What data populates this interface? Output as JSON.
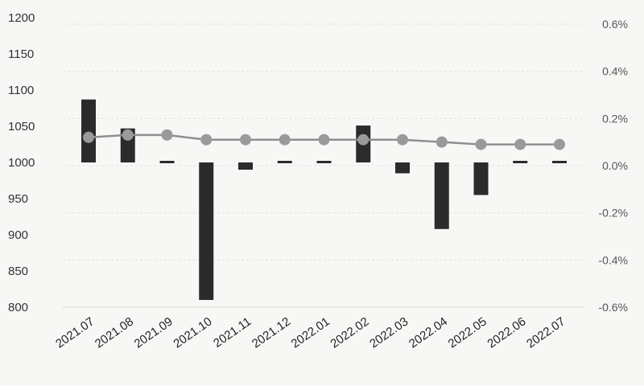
{
  "chart_data": {
    "type": "bar+line",
    "categories": [
      "2021.07",
      "2021.08",
      "2021.09",
      "2021.10",
      "2021.11",
      "2021.12",
      "2022.01",
      "2022.02",
      "2022.03",
      "2022.04",
      "2022.05",
      "2022.06",
      "2022.07"
    ],
    "bar_series": {
      "axis": "left",
      "values": [
        1087,
        1047,
        997,
        810,
        990,
        1002,
        1000,
        1051,
        985,
        908,
        955,
        1003,
        998
      ],
      "color": "#2b2b2b"
    },
    "line_series": {
      "axis": "right",
      "values": [
        0.12,
        0.13,
        0.13,
        0.11,
        0.11,
        0.11,
        0.11,
        0.11,
        0.11,
        0.1,
        0.09,
        0.09,
        0.09
      ],
      "color": "#8f8f8f",
      "marker_color": "#9a9a9a"
    },
    "y_left": {
      "min": 800,
      "max": 1200,
      "ticks": [
        "1200",
        "1150",
        "1100",
        "1050",
        "1000",
        "950",
        "900",
        "850",
        "800"
      ]
    },
    "y_right": {
      "min": -0.6,
      "max": 0.6,
      "ticks": [
        "0.6%",
        "0.4%",
        "0.2%",
        "0.0%",
        "-0.2%",
        "-0.4%",
        "-0.6%"
      ]
    },
    "grid": true
  }
}
